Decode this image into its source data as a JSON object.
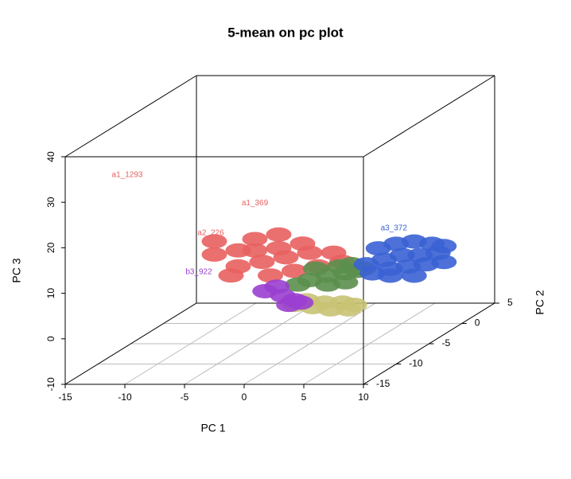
{
  "chart_data": {
    "type": "scatter3d",
    "title": "5-mean on pc plot",
    "x_label": "PC 1",
    "y_label": "PC 2",
    "z_label": "PC 3",
    "xlim": [
      -15,
      10
    ],
    "xticks": [
      -15,
      -10,
      -5,
      0,
      5,
      10
    ],
    "ylim": [
      -15,
      5
    ],
    "yticks": [
      -15,
      -10,
      -5,
      0,
      5
    ],
    "zlim": [
      -10,
      40
    ],
    "zticks": [
      -10,
      0,
      10,
      20,
      30,
      40
    ],
    "grid": true,
    "series": [
      {
        "color": "#e8605f",
        "x": [
          -6,
          -4,
          -2,
          0,
          2,
          -4.6,
          -2.6,
          -0.6,
          -6,
          -8,
          -6.6,
          -3.3,
          -1.3,
          0.7,
          2.7,
          -4.6,
          -2.6,
          -8
        ],
        "y": [
          -5,
          -5,
          -5,
          -5,
          -5,
          -5,
          -5,
          -5,
          -5,
          -5,
          -5,
          -5,
          -5,
          -5,
          -5,
          -5,
          -5,
          -5
        ],
        "z": [
          7,
          8,
          9,
          10,
          10,
          10.5,
          11,
          12,
          10.5,
          9.6,
          5,
          5,
          6,
          7,
          8,
          13,
          14,
          12.5
        ],
        "labels": [
          {
            "text": "a1_1293",
            "x": -9.8,
            "y": -15,
            "z": 36
          },
          {
            "text": "a1_369",
            "x": -4.6,
            "y": -5,
            "z": 20.9
          },
          {
            "text": "a2_226",
            "x": -8.3,
            "y": -5,
            "z": 14.3
          }
        ]
      },
      {
        "color": "#5b8f4e",
        "x": [
          0,
          1.5,
          3,
          4,
          0.5,
          2.5,
          3.5,
          4.5,
          1.5,
          3,
          -1
        ],
        "y": [
          -5,
          -5,
          -5,
          -5,
          -5,
          -5,
          -5,
          -5,
          -5,
          -5,
          -5
        ],
        "z": [
          4,
          5,
          5.5,
          6,
          6.5,
          7,
          7.5,
          6.5,
          3,
          3.5,
          3
        ]
      },
      {
        "color": "#3a62d4",
        "x": [
          2,
          3.5,
          5,
          6.5,
          8,
          3,
          4.5,
          6,
          7.5,
          8.5,
          2.5,
          4,
          5.5,
          7,
          8.5,
          4,
          6
        ],
        "y": [
          0,
          0,
          0,
          0,
          0,
          0,
          0,
          0,
          0,
          0,
          0,
          0,
          0,
          0,
          0,
          0,
          0
        ],
        "z": [
          3,
          4,
          5,
          5,
          5.5,
          6.5,
          7.5,
          8,
          7.5,
          7,
          1,
          2,
          2.5,
          3,
          3.5,
          0.5,
          0.5
        ],
        "labels": [
          {
            "text": "a3_372",
            "x": 4.3,
            "y": 0,
            "z": 10.9
          }
        ]
      },
      {
        "color": "#c9c374",
        "x": [
          1.5,
          3,
          4.5,
          6,
          2.5,
          4,
          5.5,
          6.5
        ],
        "y": [
          -10,
          -10,
          -10,
          -10,
          -10,
          -10,
          -10,
          -10
        ],
        "z": [
          3,
          2.5,
          2,
          2,
          4,
          3.5,
          3.5,
          3
        ]
      },
      {
        "color": "#9a3fd0",
        "x": [
          -1,
          0.5,
          1.5,
          0,
          1,
          2
        ],
        "y": [
          -10,
          -10,
          -10,
          -10,
          -10,
          -10
        ],
        "z": [
          6,
          5,
          4,
          7,
          3,
          3.5
        ],
        "labels": [
          {
            "text": "b3_922",
            "x": -6.55,
            "y": -10,
            "z": 10.2
          }
        ]
      }
    ]
  }
}
